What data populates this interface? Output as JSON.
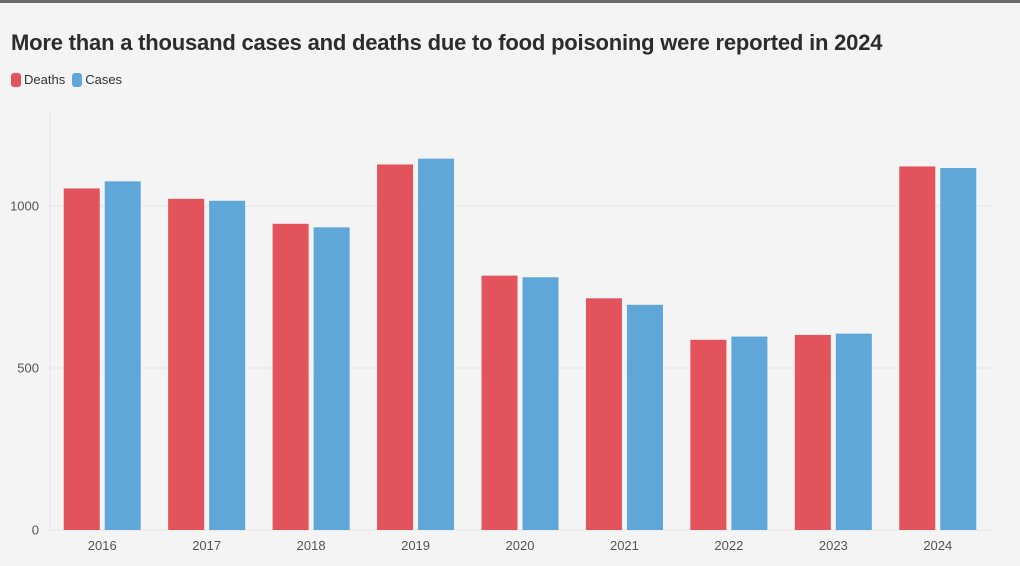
{
  "title": "More than a thousand cases and deaths due to food poisoning were reported in 2024",
  "colors": {
    "deaths": "#e2535b",
    "cases": "#5fa6d9",
    "grid": "#e6e6e6",
    "background": "#f4f4f4"
  },
  "chart_data": {
    "type": "bar",
    "title": "More than a thousand cases and deaths due to food poisoning were reported in 2024",
    "xlabel": "",
    "ylabel": "",
    "categories": [
      "2016",
      "2017",
      "2018",
      "2019",
      "2020",
      "2021",
      "2022",
      "2023",
      "2024"
    ],
    "series": [
      {
        "name": "Deaths",
        "values": [
          1054,
          1022,
          945,
          1128,
          785,
          715,
          587,
          602,
          1122
        ]
      },
      {
        "name": "Cases",
        "values": [
          1076,
          1016,
          934,
          1146,
          780,
          695,
          597,
          606,
          1117
        ]
      }
    ],
    "yticks": [
      "0",
      "500",
      "1000"
    ],
    "ylim": [
      0,
      1290
    ],
    "grid": true,
    "legend": "top-left"
  }
}
